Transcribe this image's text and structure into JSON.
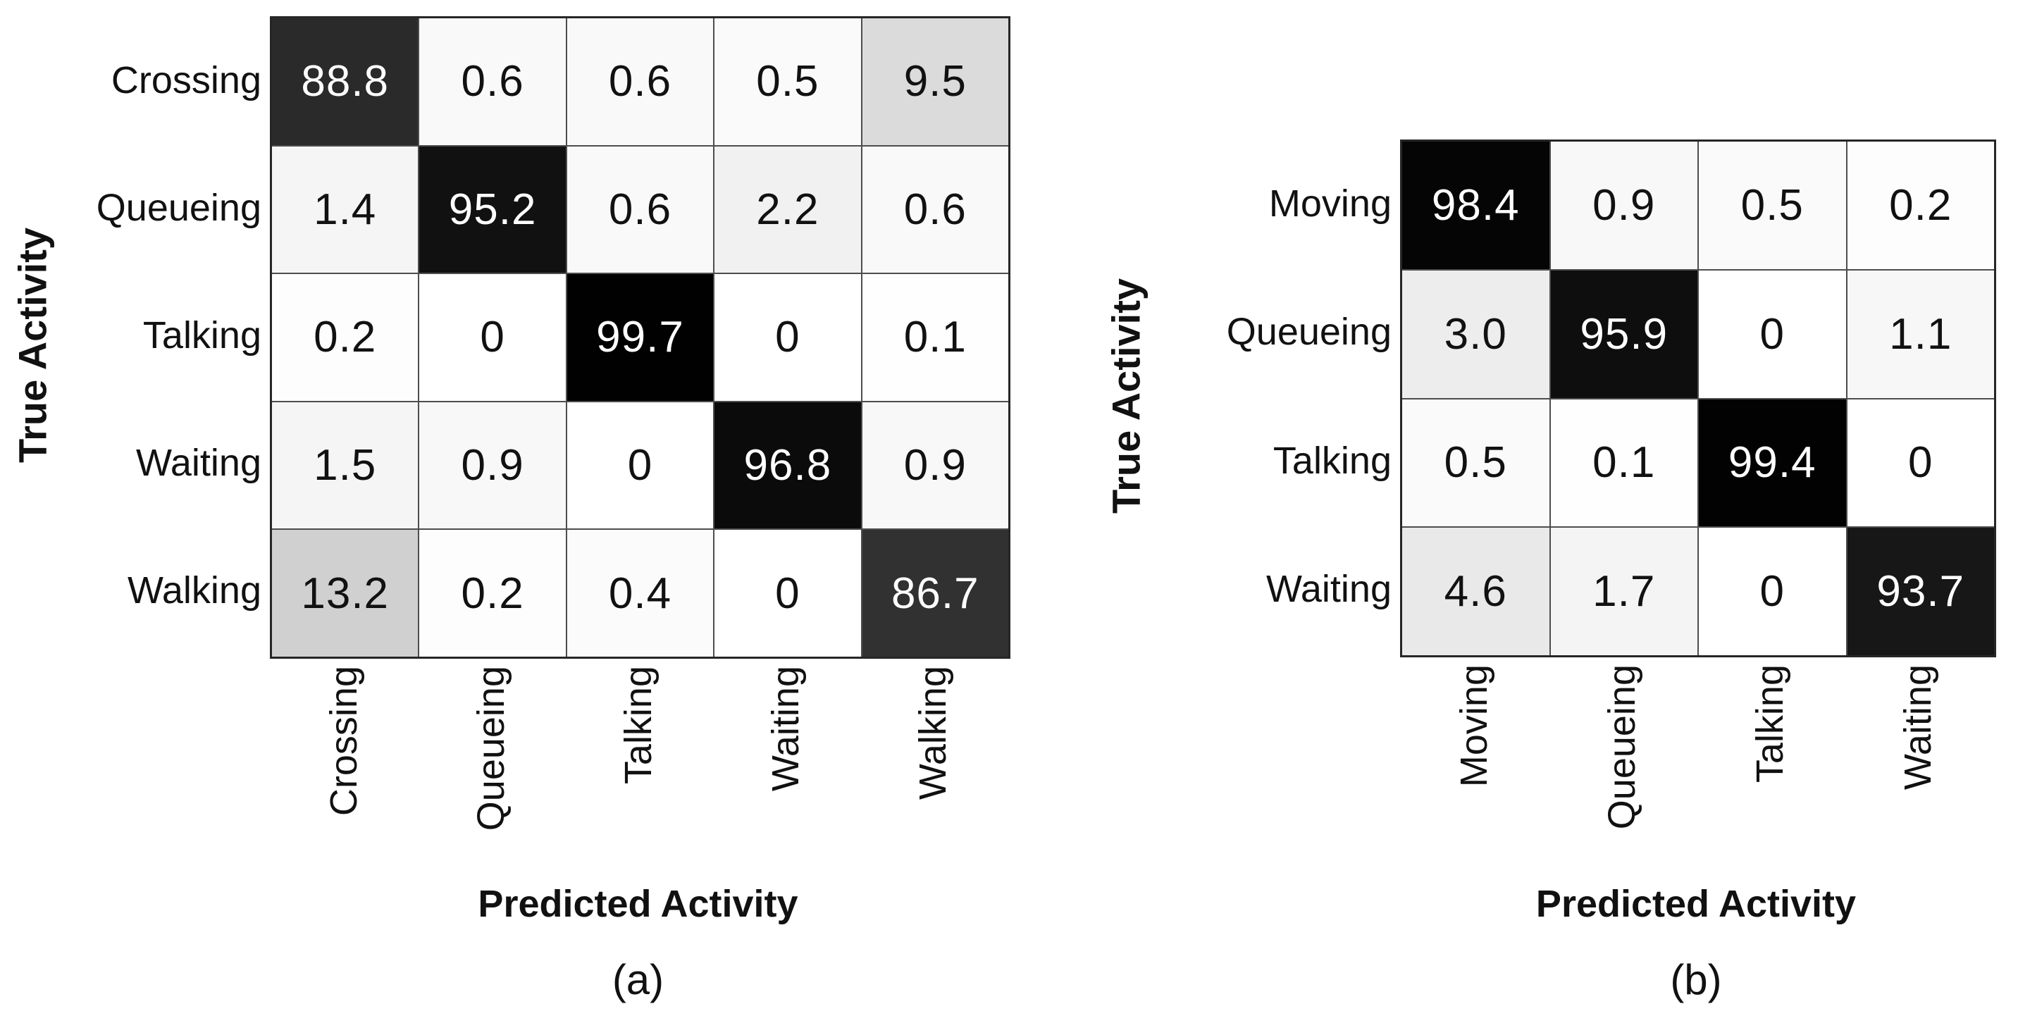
{
  "figure": {
    "description": "Two grayscale confusion matrices of activity recognition results",
    "background_color": "#ffffff",
    "grid_line_color": "#4d4d4d",
    "frame_color": "#262626",
    "text_color": "#111111",
    "cell_text_color_on_dark": "#ffffff"
  },
  "chart_data": [
    {
      "type": "heatmap",
      "caption": "(a)",
      "xlabel": "Predicted Activity",
      "ylabel": "True Activity",
      "x_categories": [
        "Crossing",
        "Queueing",
        "Talking",
        "Waiting",
        "Walking"
      ],
      "y_categories": [
        "Crossing",
        "Queueing",
        "Talking",
        "Waiting",
        "Walking"
      ],
      "values": [
        [
          "88.8",
          "0.6",
          "0.6",
          "0.5",
          "9.5"
        ],
        [
          "1.4",
          "95.2",
          "0.6",
          "2.2",
          "0.6"
        ],
        [
          "0.2",
          "0",
          "99.7",
          "0",
          "0.1"
        ],
        [
          "1.5",
          "0.9",
          "0",
          "96.8",
          "0.9"
        ],
        [
          "13.2",
          "0.2",
          "0.4",
          "0",
          "86.7"
        ]
      ],
      "colormap": {
        "low": "#ffffff",
        "high": "#000000",
        "domain": [
          0,
          100
        ]
      },
      "legend": "none",
      "grid": true
    },
    {
      "type": "heatmap",
      "caption": "(b)",
      "xlabel": "Predicted Activity",
      "ylabel": "True Activity",
      "x_categories": [
        "Moving",
        "Queueing",
        "Talking",
        "Waiting"
      ],
      "y_categories": [
        "Moving",
        "Queueing",
        "Talking",
        "Waiting"
      ],
      "values": [
        [
          "98.4",
          "0.9",
          "0.5",
          "0.2"
        ],
        [
          "3.0",
          "95.9",
          "0",
          "1.1"
        ],
        [
          "0.5",
          "0.1",
          "99.4",
          "0"
        ],
        [
          "4.6",
          "1.7",
          "0",
          "93.7"
        ]
      ],
      "colormap": {
        "low": "#ffffff",
        "high": "#000000",
        "domain": [
          0,
          100
        ]
      },
      "legend": "none",
      "grid": true
    }
  ]
}
